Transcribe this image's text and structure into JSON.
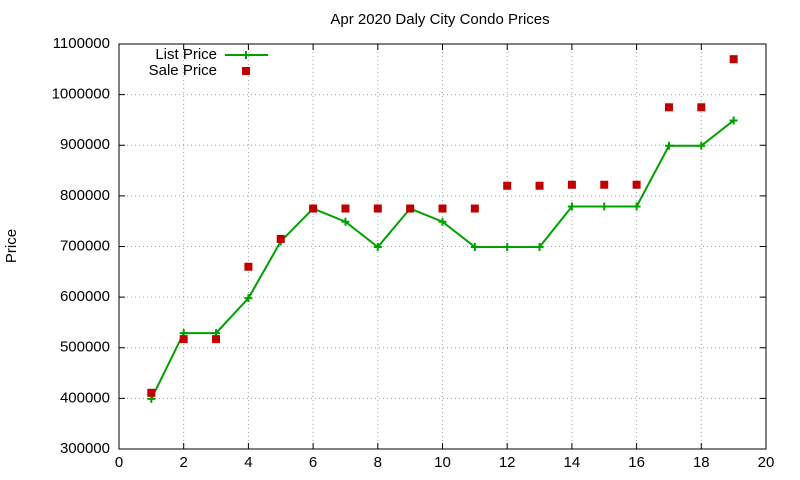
{
  "chart_data": {
    "type": "line",
    "title": "Apr 2020 Daly City Condo Prices",
    "y_label": "Price",
    "x": [
      1,
      2,
      3,
      4,
      5,
      6,
      7,
      8,
      9,
      10,
      11,
      12,
      13,
      14,
      15,
      16,
      17,
      18,
      19
    ],
    "series": [
      {
        "name": "List Price",
        "color": "#00a000",
        "style": "line-points",
        "values": [
          399000,
          529000,
          529000,
          598000,
          710000,
          775000,
          749000,
          699000,
          775000,
          749000,
          699000,
          699000,
          699000,
          779000,
          779000,
          779000,
          899000,
          899000,
          949000
        ]
      },
      {
        "name": "Sale Price",
        "color": "#c00000",
        "style": "points",
        "values": [
          411000,
          517000,
          517000,
          660000,
          715000,
          775000,
          775000,
          775000,
          775000,
          775000,
          775000,
          820000,
          820000,
          822000,
          822000,
          822000,
          975000,
          975000,
          1070000
        ]
      }
    ],
    "xlim": [
      0,
      20
    ],
    "xticks": [
      0,
      2,
      4,
      6,
      8,
      10,
      12,
      14,
      16,
      18,
      20
    ],
    "ylim": [
      300000,
      1100000
    ],
    "yticks": [
      300000,
      400000,
      500000,
      600000,
      700000,
      800000,
      900000,
      1000000,
      1100000
    ],
    "grid": true,
    "legend": "top-left"
  }
}
